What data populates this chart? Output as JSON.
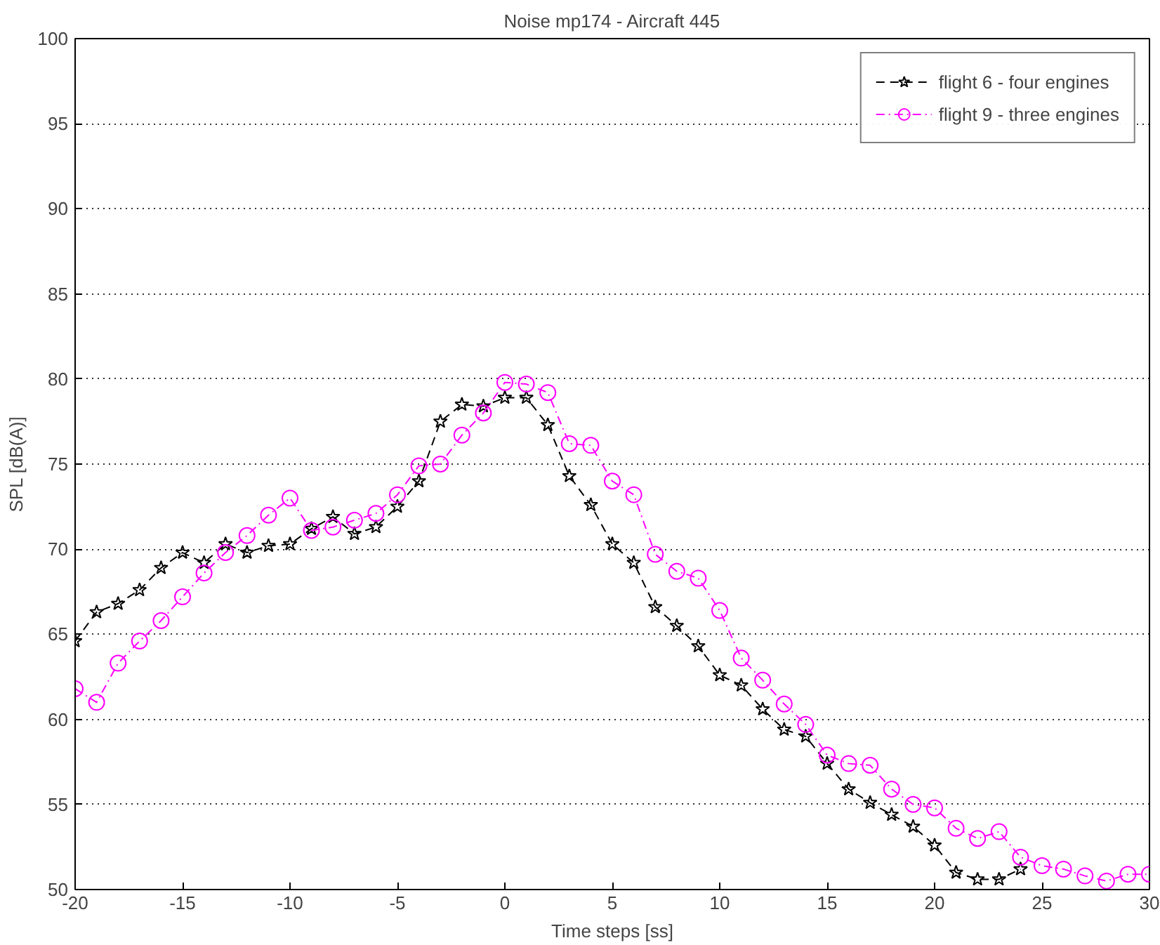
{
  "chart_data": {
    "type": "line",
    "title": "Noise mp174 - Aircraft 445",
    "xlabel": "Time steps [ss]",
    "ylabel": "SPL [dB(A)]",
    "xlim": [
      -20,
      30
    ],
    "xticks": [
      -20,
      -15,
      -10,
      -5,
      0,
      5,
      10,
      15,
      20,
      25,
      30
    ],
    "ylim": [
      50,
      100
    ],
    "yticks": [
      50,
      55,
      60,
      65,
      70,
      75,
      80,
      85,
      90,
      95,
      100
    ],
    "grid": "y",
    "legend": "top right",
    "series": [
      {
        "name": "flight 6 - four engines",
        "color": "#000000",
        "marker": "star",
        "line_style": "dashed",
        "x": [
          -20,
          -19,
          -18,
          -17,
          -16,
          -15,
          -14,
          -13,
          -12,
          -11,
          -10,
          -9,
          -8,
          -7,
          -6,
          -5,
          -4,
          -3,
          -2,
          -1,
          0,
          1,
          2,
          3,
          4,
          5,
          6,
          7,
          8,
          9,
          10,
          11,
          12,
          13,
          14,
          15,
          16,
          17,
          18,
          19,
          20,
          21,
          22,
          23,
          24
        ],
        "values": [
          64.6,
          66.3,
          66.8,
          67.6,
          68.9,
          69.8,
          69.2,
          70.3,
          69.8,
          70.2,
          70.3,
          71.2,
          71.9,
          70.9,
          71.3,
          72.5,
          74.0,
          77.5,
          78.5,
          78.4,
          78.9,
          78.9,
          77.3,
          74.3,
          72.6,
          70.3,
          69.2,
          66.6,
          65.5,
          64.3,
          62.6,
          62.0,
          60.6,
          59.4,
          59.0,
          57.4,
          55.9,
          55.1,
          54.4,
          53.7,
          52.6,
          51.0,
          50.6,
          50.6,
          51.2
        ]
      },
      {
        "name": "flight 9 - three engines",
        "color": "#ff00ff",
        "marker": "circle",
        "line_style": "dashdot",
        "x": [
          -20,
          -19,
          -18,
          -17,
          -16,
          -15,
          -14,
          -13,
          -12,
          -11,
          -10,
          -9,
          -8,
          -7,
          -6,
          -5,
          -4,
          -3,
          -2,
          -1,
          0,
          1,
          2,
          3,
          4,
          5,
          6,
          7,
          8,
          9,
          10,
          11,
          12,
          13,
          14,
          15,
          16,
          17,
          18,
          19,
          20,
          21,
          22,
          23,
          24,
          25,
          26,
          27,
          28,
          29,
          30
        ],
        "values": [
          61.8,
          61.0,
          63.3,
          64.6,
          65.8,
          67.2,
          68.6,
          69.8,
          70.8,
          72.0,
          73.0,
          71.1,
          71.3,
          71.7,
          72.1,
          73.2,
          74.9,
          75.0,
          76.7,
          78.0,
          79.8,
          79.7,
          79.2,
          76.2,
          76.1,
          74.0,
          73.2,
          69.7,
          68.7,
          68.3,
          66.4,
          63.6,
          62.3,
          60.9,
          59.7,
          57.9,
          57.4,
          57.3,
          55.9,
          55.0,
          54.8,
          53.6,
          53.0,
          53.4,
          51.9,
          51.4,
          51.2,
          50.8,
          50.5,
          50.9,
          50.9
        ]
      }
    ]
  }
}
